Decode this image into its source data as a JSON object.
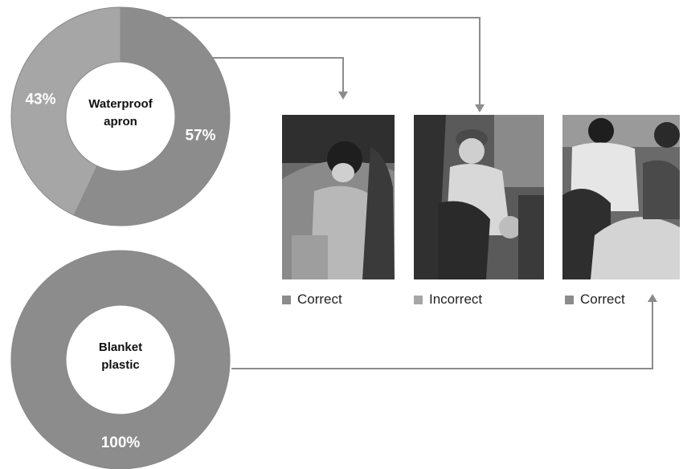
{
  "chart_data": [
    {
      "type": "pie",
      "variant": "donut",
      "center_label": [
        "Waterproof",
        "apron"
      ],
      "slices": [
        {
          "label": "57%",
          "value": 57,
          "color": "#8c8c8c"
        },
        {
          "label": "43%",
          "value": 43,
          "color": "#a6a6a6"
        }
      ]
    },
    {
      "type": "pie",
      "variant": "donut",
      "center_label": [
        "Blanket",
        "plastic"
      ],
      "slices": [
        {
          "label": "100%",
          "value": 100,
          "color": "#8c8c8c"
        }
      ]
    }
  ],
  "photos": [
    {
      "legend": "Correct",
      "swatch_color": "#8c8c8c"
    },
    {
      "legend": "Incorrect",
      "swatch_color": "#a6a6a6"
    },
    {
      "legend": "Correct",
      "swatch_color": "#8c8c8c"
    }
  ],
  "colors": {
    "arrow": "#8c8c8c",
    "photo_bg": "#4a4a4a"
  }
}
